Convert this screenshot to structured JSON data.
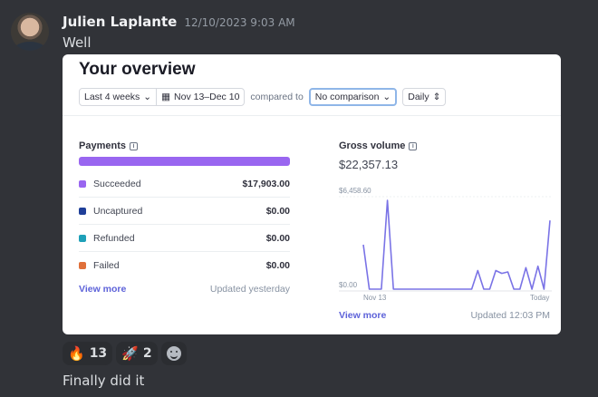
{
  "message": {
    "username": "Julien Laplante",
    "timestamp": "12/10/2023 9:03 AM",
    "text": "Well",
    "followup": "Finally did it"
  },
  "overview": {
    "title": "Your overview",
    "filters": {
      "range": "Last 4 weeks",
      "dates": "Nov 13–Dec 10",
      "compared_to": "compared to",
      "comparison": "No comparison",
      "interval": "Daily"
    },
    "payments": {
      "title": "Payments",
      "rows": [
        {
          "label": "Succeeded",
          "amount": "$17,903.00",
          "color": "#9966f0"
        },
        {
          "label": "Uncaptured",
          "amount": "$0.00",
          "color": "#1f3f99"
        },
        {
          "label": "Refunded",
          "amount": "$0.00",
          "color": "#1ea0b8"
        },
        {
          "label": "Failed",
          "amount": "$0.00",
          "color": "#e0703a"
        }
      ],
      "view_more": "View more",
      "updated": "Updated yesterday"
    },
    "gross": {
      "title": "Gross volume",
      "amount": "$22,357.13",
      "view_more": "View more",
      "updated": "Updated 12:03 PM"
    }
  },
  "chart_data": {
    "type": "line",
    "title": "Gross volume",
    "y_tick_labels": [
      "$6,458.60",
      "$0.00"
    ],
    "x_tick_labels": [
      "Nov 13",
      "Today"
    ],
    "ylim": [
      0,
      6458.6
    ],
    "series": [
      {
        "color": "#7a73e6",
        "values": [
          3100,
          0,
          0,
          0,
          6200,
          0,
          0,
          0,
          0,
          0,
          0,
          0,
          0,
          0,
          0,
          0,
          0,
          0,
          0,
          1300,
          0,
          0,
          1300,
          1100,
          1200,
          0,
          0,
          1500,
          0,
          1600,
          0,
          4800
        ]
      }
    ]
  },
  "reactions": [
    {
      "emoji": "🔥",
      "count": "13"
    },
    {
      "emoji": "🚀",
      "count": "2"
    }
  ]
}
